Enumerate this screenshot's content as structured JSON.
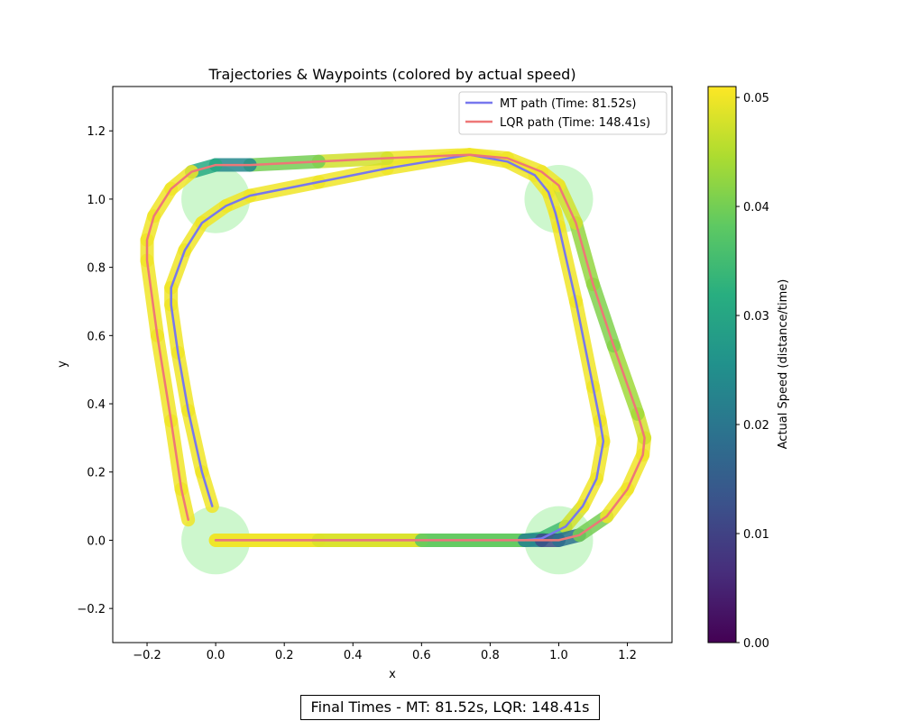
{
  "chart_data": [
    {
      "type": "line",
      "title": "Trajectories & Waypoints (colored by actual speed)",
      "xlabel": "x",
      "ylabel": "y",
      "xlim": [
        -0.3,
        1.33
      ],
      "ylim": [
        -0.3,
        1.33
      ],
      "grid": false,
      "legend_position": "top-right",
      "x_ticks": [
        -0.2,
        0.0,
        0.2,
        0.4,
        0.6,
        0.8,
        1.0,
        1.2
      ],
      "x_tick_labels": [
        "−0.2",
        "0.0",
        "0.2",
        "0.4",
        "0.6",
        "0.8",
        "1.0",
        "1.2"
      ],
      "y_ticks": [
        -0.2,
        0.0,
        0.2,
        0.4,
        0.6,
        0.8,
        1.0,
        1.2
      ],
      "y_tick_labels": [
        "−0.2",
        "0.0",
        "0.2",
        "0.4",
        "0.6",
        "0.8",
        "1.0",
        "1.2"
      ],
      "waypoints": [
        {
          "x": 0.0,
          "y": 0.0
        },
        {
          "x": 1.0,
          "y": 0.0
        },
        {
          "x": 1.0,
          "y": 1.0
        },
        {
          "x": 0.0,
          "y": 1.0
        }
      ],
      "waypoint_radius": 0.1,
      "waypoint_color": "#90ee90",
      "series": [
        {
          "name": "MT path (Time: 81.52s)",
          "color": "#7777ee",
          "x": [
            0.0,
            0.3,
            0.6,
            0.9,
            0.95,
            1.02,
            1.07,
            1.11,
            1.13,
            1.12,
            1.1,
            1.05,
            1.0,
            0.99,
            0.97,
            0.93,
            0.85,
            0.74,
            0.5,
            0.3,
            0.1,
            0.03,
            -0.04,
            -0.09,
            -0.13,
            -0.13,
            -0.11,
            -0.08,
            -0.04,
            -0.01
          ],
          "y": [
            0.0,
            0.0,
            0.0,
            0.0,
            0.005,
            0.04,
            0.1,
            0.18,
            0.29,
            0.35,
            0.45,
            0.7,
            0.92,
            0.96,
            1.02,
            1.07,
            1.11,
            1.13,
            1.09,
            1.05,
            1.01,
            0.98,
            0.93,
            0.85,
            0.74,
            0.69,
            0.55,
            0.38,
            0.2,
            0.1
          ],
          "speed": [
            0.05,
            0.05,
            0.048,
            0.035,
            0.025,
            0.045,
            0.05,
            0.05,
            0.05,
            0.05,
            0.05,
            0.05,
            0.05,
            0.05,
            0.05,
            0.05,
            0.05,
            0.05,
            0.05,
            0.05,
            0.05,
            0.05,
            0.05,
            0.05,
            0.05,
            0.05,
            0.05,
            0.05,
            0.05,
            0.05
          ]
        },
        {
          "name": "LQR path (Time: 148.41s)",
          "color": "#ee7777",
          "x": [
            0.0,
            0.3,
            0.6,
            0.9,
            0.95,
            1.0,
            1.06,
            1.14,
            1.2,
            1.245,
            1.25,
            1.23,
            1.16,
            1.1,
            1.05,
            1.0,
            0.95,
            0.85,
            0.74,
            0.5,
            0.3,
            0.1,
            0.0,
            -0.07,
            -0.13,
            -0.18,
            -0.2,
            -0.2,
            -0.17,
            -0.13,
            -0.1,
            -0.08
          ],
          "y": [
            0.0,
            0.0,
            0.0,
            0.0,
            0.0,
            0.0,
            0.015,
            0.07,
            0.15,
            0.25,
            0.3,
            0.37,
            0.57,
            0.75,
            0.93,
            1.04,
            1.08,
            1.12,
            1.13,
            1.12,
            1.11,
            1.1,
            1.1,
            1.08,
            1.03,
            0.95,
            0.88,
            0.82,
            0.6,
            0.35,
            0.15,
            0.06
          ],
          "speed": [
            0.05,
            0.05,
            0.046,
            0.03,
            0.015,
            0.008,
            0.03,
            0.05,
            0.05,
            0.05,
            0.05,
            0.045,
            0.042,
            0.04,
            0.045,
            0.05,
            0.05,
            0.05,
            0.05,
            0.05,
            0.045,
            0.035,
            0.012,
            0.05,
            0.05,
            0.05,
            0.05,
            0.05,
            0.05,
            0.05,
            0.05,
            0.05
          ]
        }
      ],
      "colorbar": {
        "label": "Actual Speed (distance/time)",
        "colormap": "viridis",
        "range": [
          0.0,
          0.051
        ],
        "ticks": [
          0.0,
          0.01,
          0.02,
          0.03,
          0.04,
          0.05
        ],
        "tick_labels": [
          "0.00",
          "0.01",
          "0.02",
          "0.03",
          "0.04",
          "0.05"
        ]
      }
    }
  ],
  "final_times_text": "Final Times - MT: 81.52s, LQR: 148.41s"
}
